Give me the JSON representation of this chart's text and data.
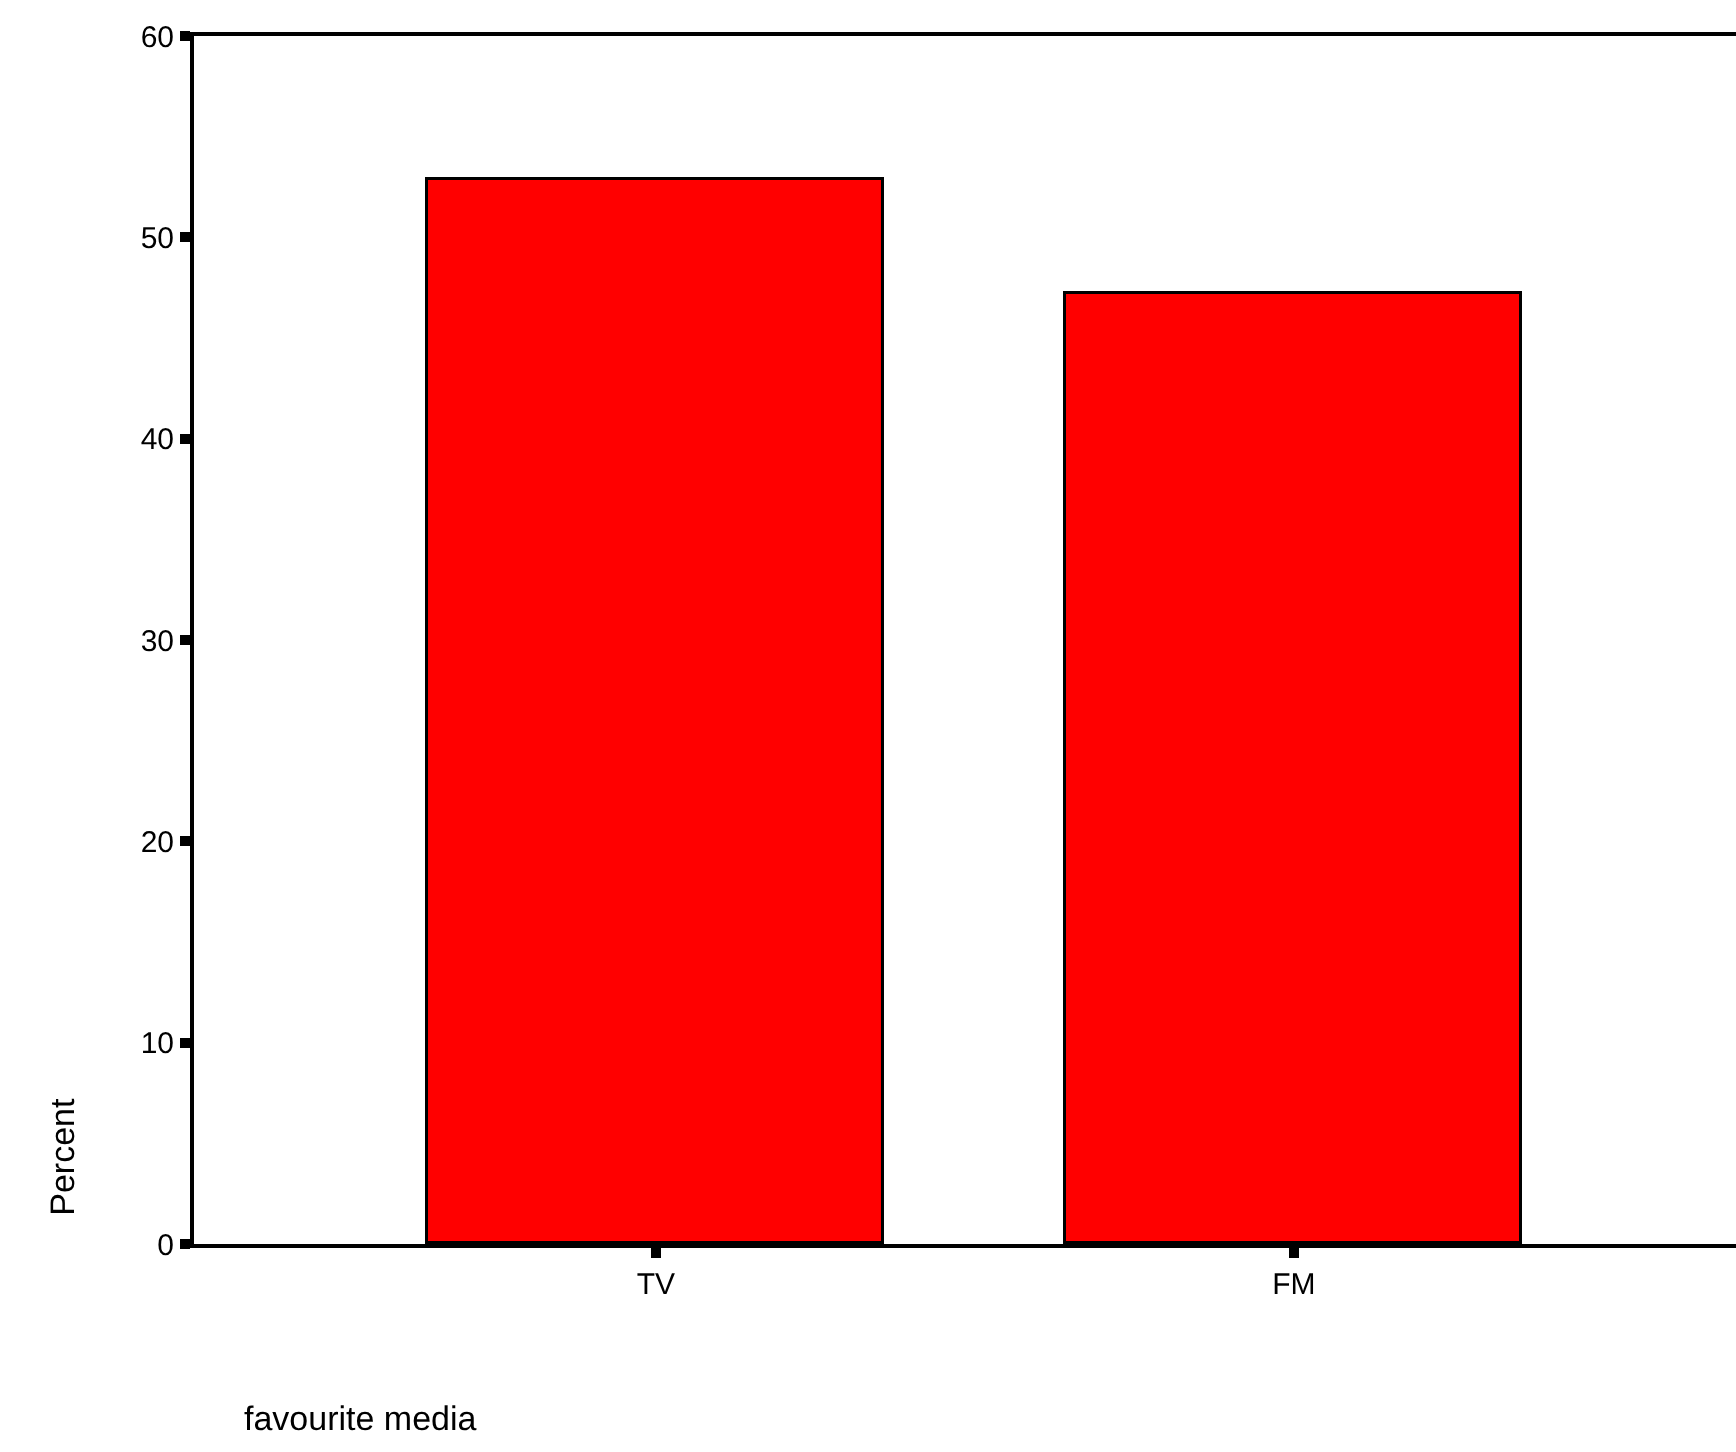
{
  "chart_data": {
    "type": "bar",
    "xlabel": "favourite media",
    "ylabel": "Percent",
    "categories": [
      "TV",
      "FM"
    ],
    "series": [
      {
        "color": "#ff0000",
        "values": [
          52.8,
          47.2
        ]
      }
    ],
    "ylim": [
      0,
      60
    ],
    "yticks": [
      0,
      10,
      20,
      30,
      40,
      50,
      60
    ]
  }
}
